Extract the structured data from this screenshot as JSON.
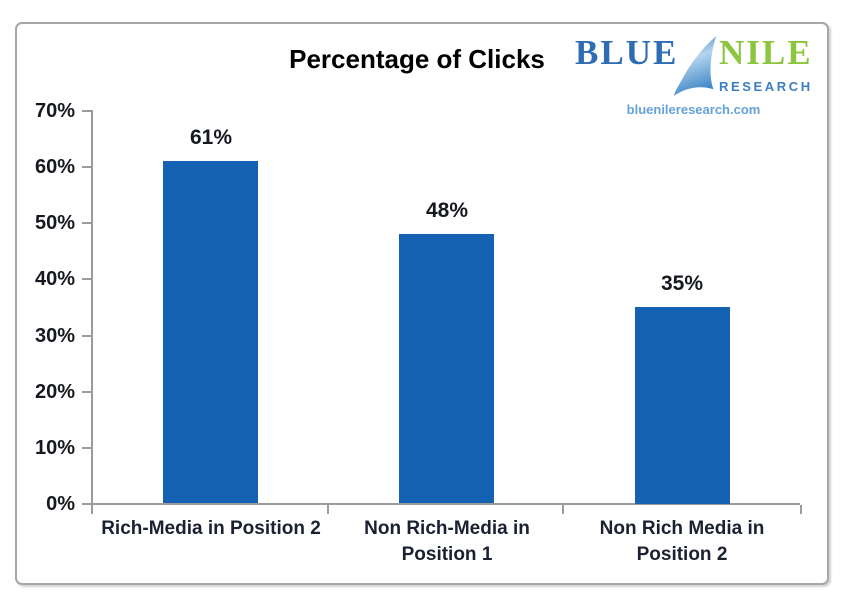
{
  "header": {
    "title": "Percentage of Clicks",
    "logo": {
      "word_blue": "BLUE",
      "word_nile": "NILE",
      "word_research": "RESEARCH",
      "website": "bluenileresearch.com",
      "color_blue": "#2E6DB4",
      "color_green": "#8CC63F",
      "color_research": "#3B7FC0",
      "color_website": "#64A2D8"
    }
  },
  "chart_data": {
    "type": "bar",
    "title": "Percentage of Clicks",
    "categories": [
      "Rich-Media in Position 2",
      "Non Rich-Media in Position 1",
      "Non Rich Media  in Position 2"
    ],
    "category_lines": [
      [
        "Rich-Media in Position 2"
      ],
      [
        "Non Rich-Media in",
        "Position 1"
      ],
      [
        "Non Rich Media  in",
        "Position 2"
      ]
    ],
    "values": [
      61,
      48,
      35
    ],
    "value_labels": [
      "61%",
      "48%",
      "35%"
    ],
    "xlabel": "",
    "ylabel": "",
    "ylim": [
      0,
      70
    ],
    "yticks": [
      0,
      10,
      20,
      30,
      40,
      50,
      60,
      70
    ],
    "ytick_labels": [
      "0%",
      "10%",
      "20%",
      "30%",
      "40%",
      "50%",
      "60%",
      "70%"
    ],
    "bar_color": "#1561B2",
    "axis_color": "#9B9B9B",
    "grid": false,
    "legend": null
  }
}
